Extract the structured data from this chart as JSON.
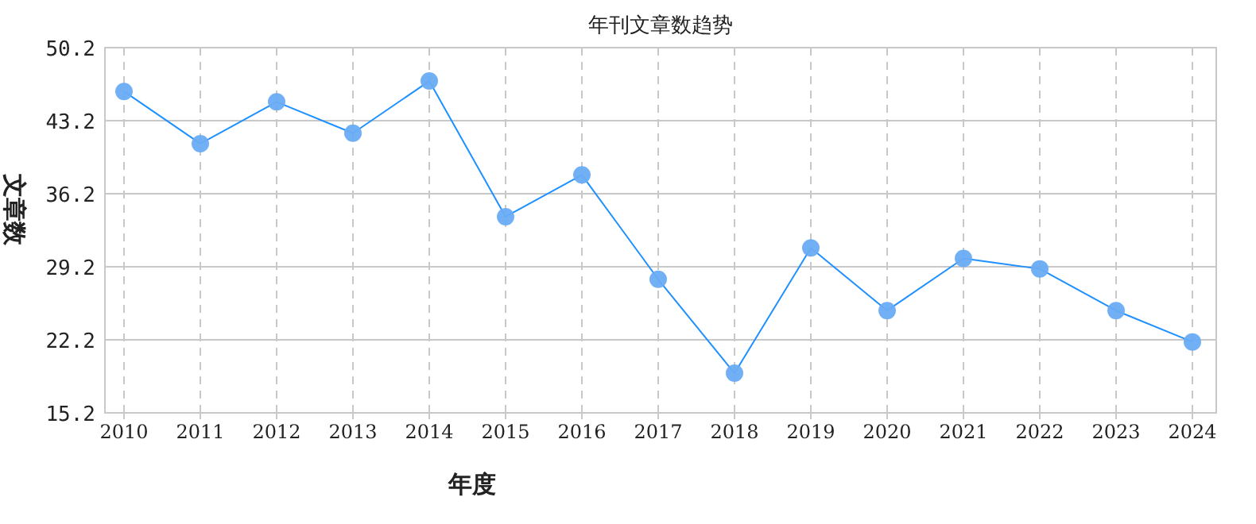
{
  "chart_data": {
    "type": "line",
    "title": "年刊文章数趋势",
    "xlabel": "年度",
    "ylabel": "文章数",
    "categories": [
      "2010",
      "2011",
      "2012",
      "2013",
      "2014",
      "2015",
      "2016",
      "2017",
      "2018",
      "2019",
      "2020",
      "2021",
      "2022",
      "2023",
      "2024"
    ],
    "series": [
      {
        "color": "#1e90ff",
        "values": [
          46,
          41,
          45,
          42,
          47,
          34,
          38,
          28,
          19,
          31,
          25,
          30,
          29,
          25,
          22
        ]
      }
    ],
    "ylim": [
      15.2,
      50.2
    ],
    "yticks": [
      15.2,
      22.2,
      29.2,
      36.2,
      43.2,
      50.2
    ],
    "grid": true,
    "marker": "circle",
    "line_style": "solid"
  }
}
